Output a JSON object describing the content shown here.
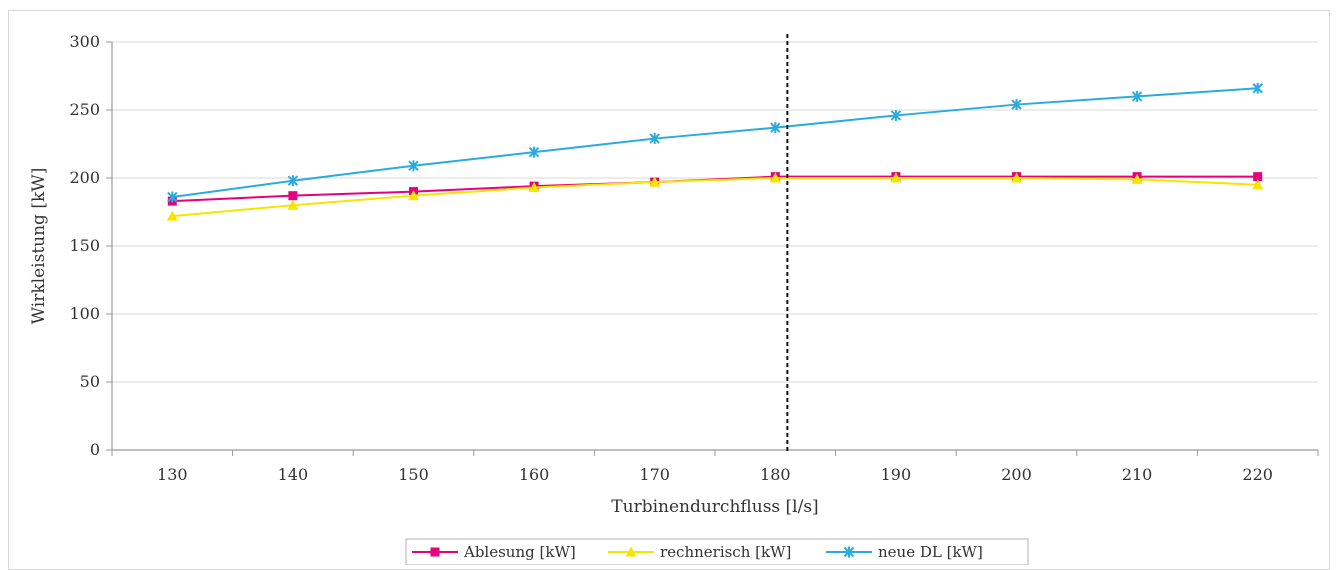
{
  "chart_data": {
    "type": "line",
    "x": [
      130,
      140,
      150,
      160,
      170,
      180,
      190,
      200,
      210,
      220
    ],
    "xlabel": "Turbinendurchfluss [l/s]",
    "ylabel": "Wirkleistung [kW]",
    "ylim": [
      0,
      300
    ],
    "yticks": [
      0,
      50,
      100,
      150,
      200,
      250,
      300
    ],
    "grid": true,
    "reference_line_x": 181,
    "legend_position": "bottom",
    "series": [
      {
        "name": "Ablesung [kW]",
        "color": "#e6007e",
        "marker": "square",
        "values": [
          183,
          187,
          190,
          194,
          197,
          201,
          201,
          201,
          201,
          201
        ]
      },
      {
        "name": "rechnerisch [kW]",
        "color": "#f5e600",
        "marker": "triangle",
        "values": [
          172,
          180,
          187,
          193,
          197,
          200,
          200,
          200,
          199,
          195
        ]
      },
      {
        "name": "neue DL [kW]",
        "color": "#29abe2",
        "marker": "star",
        "values": [
          186,
          198,
          209,
          219,
          229,
          237,
          246,
          254,
          260,
          266
        ]
      }
    ]
  }
}
